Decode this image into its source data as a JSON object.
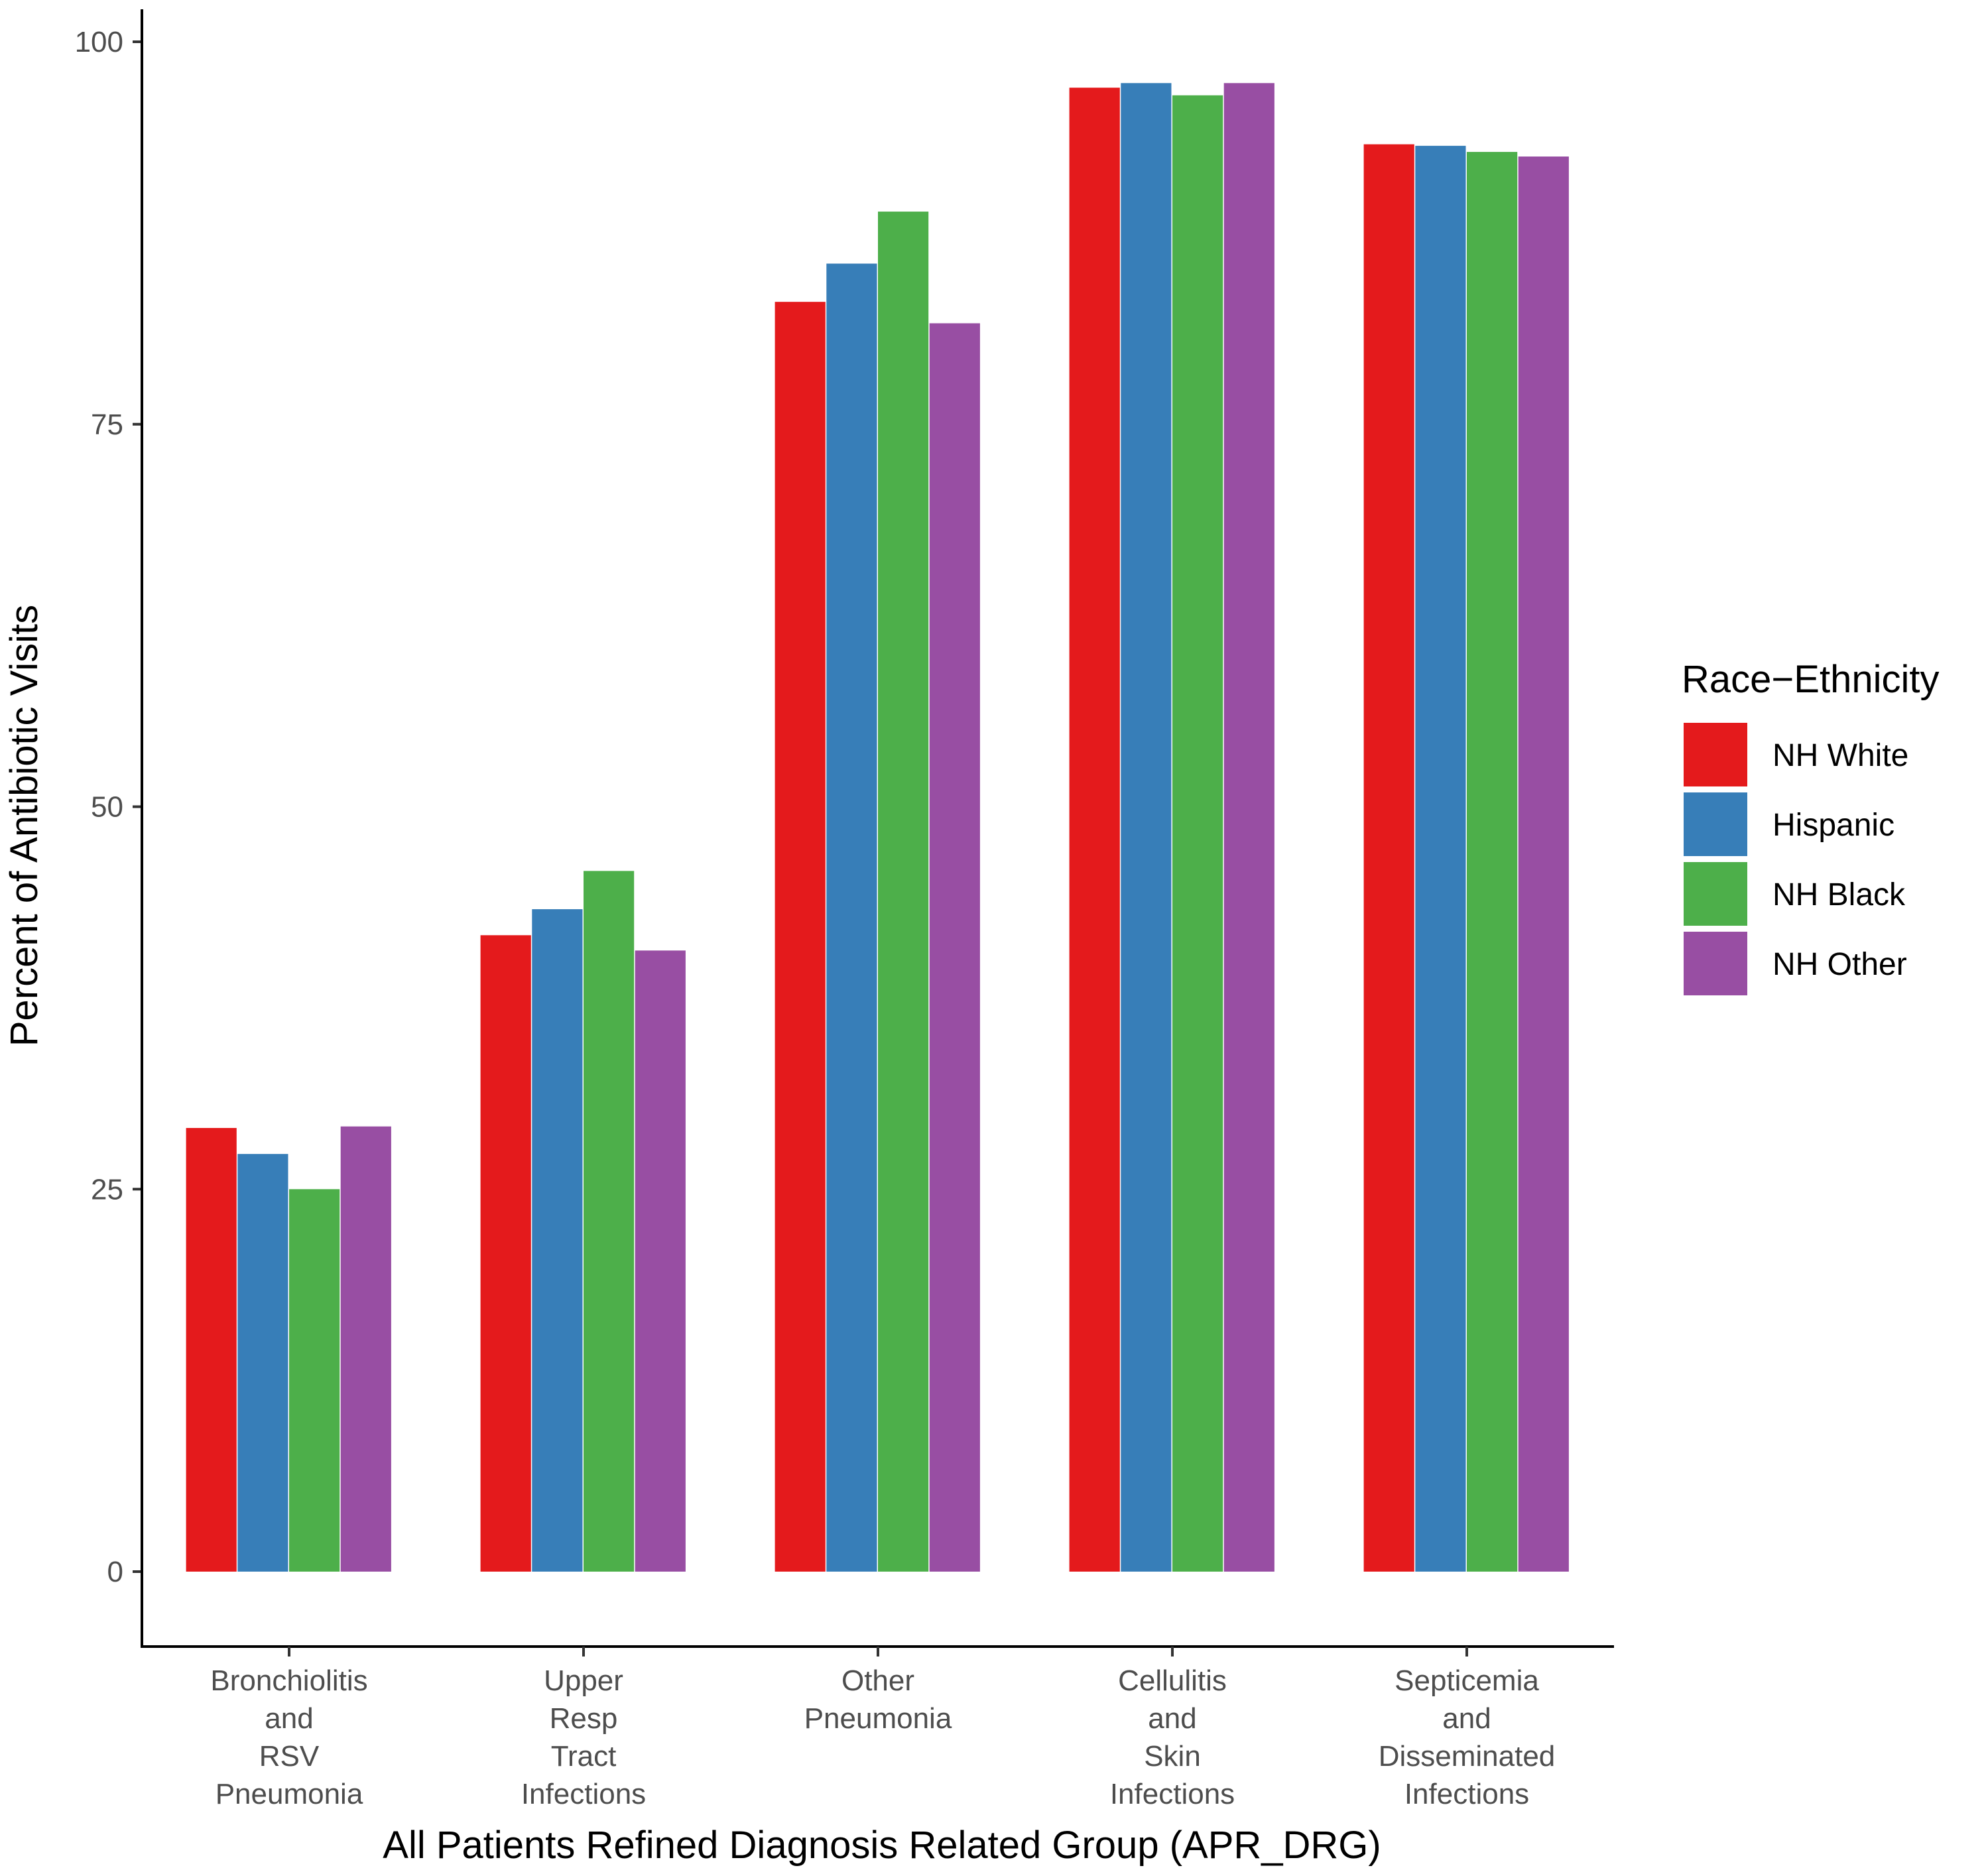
{
  "chart_data": {
    "type": "bar",
    "title": "",
    "xlabel": "All Patients Refined Diagnosis Related Group (APR_DRG)",
    "ylabel": "Percent of Antibiotic Visits",
    "ylim": [
      -4.5,
      102
    ],
    "yticks": [
      0,
      25,
      50,
      75,
      100
    ],
    "grid": false,
    "legend_position": "right",
    "legend_title": "Race−Ethnicity",
    "categories": [
      [
        "Bronchiolitis",
        "and",
        "RSV",
        "Pneumonia"
      ],
      [
        "Upper",
        "Resp",
        "Tract",
        "Infections"
      ],
      [
        "Other",
        "Pneumonia"
      ],
      [
        "Cellulitis",
        "and",
        "Skin",
        "Infections"
      ],
      [
        "Septicemia",
        "and",
        "Disseminated",
        "Infections"
      ]
    ],
    "series": [
      {
        "name": "NH White",
        "color": "#e41a1c",
        "values": [
          29.0,
          41.6,
          83.0,
          97.0,
          93.3
        ]
      },
      {
        "name": "Hispanic",
        "color": "#377eb8",
        "values": [
          27.3,
          43.3,
          85.5,
          97.3,
          93.2
        ]
      },
      {
        "name": "NH Black",
        "color": "#4daf4a",
        "values": [
          25.0,
          45.8,
          88.9,
          96.5,
          92.8
        ]
      },
      {
        "name": "NH Other",
        "color": "#984ea3",
        "values": [
          29.1,
          40.6,
          81.6,
          97.3,
          92.5
        ]
      }
    ]
  }
}
